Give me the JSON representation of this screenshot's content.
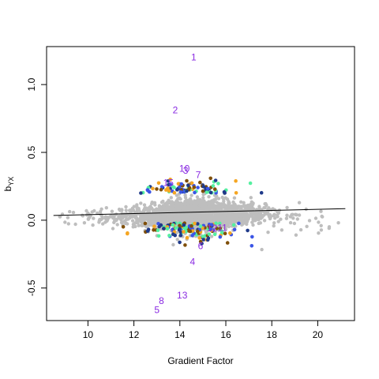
{
  "chart_data": {
    "type": "scatter",
    "xlabel": "Gradient Factor",
    "ylabel_main": "b",
    "ylabel_sub": "YX",
    "xlim": [
      8.2,
      21.6
    ],
    "ylim": [
      -0.74,
      1.28
    ],
    "xticks": [
      10,
      12,
      14,
      16,
      18,
      20
    ],
    "yticks": [
      -0.5,
      0.0,
      0.5,
      1.0
    ],
    "xtick_labels": [
      "10",
      "12",
      "14",
      "16",
      "18",
      "20"
    ],
    "ytick_labels": [
      "-0.5",
      "0.0",
      "0.5",
      "1.0"
    ],
    "grid": false,
    "background_color": "#bebebe",
    "highlight_colors": [
      "#f5a623",
      "#7f4f0a",
      "#3b55e6",
      "#55f0a0",
      "#1f3a8a"
    ],
    "label_color": "#8a2be2",
    "fit_line": {
      "x": [
        8.5,
        21.2
      ],
      "y": [
        0.035,
        0.085
      ],
      "color": "#000000"
    },
    "labeled_points": [
      {
        "label": "1",
        "x": 14.6,
        "y": 1.2
      },
      {
        "label": "2",
        "x": 13.8,
        "y": 0.81
      },
      {
        "label": "10",
        "x": 14.2,
        "y": 0.38
      },
      {
        "label": "3",
        "x": 14.25,
        "y": 0.365
      },
      {
        "label": "7",
        "x": 14.8,
        "y": 0.335
      },
      {
        "label": "15",
        "x": 13.5,
        "y": 0.275
      },
      {
        "label": "12",
        "x": 15.4,
        "y": -0.06
      },
      {
        "label": "11",
        "x": 15.85,
        "y": -0.055
      },
      {
        "label": "6",
        "x": 14.9,
        "y": -0.19
      },
      {
        "label": "4",
        "x": 14.55,
        "y": -0.305
      },
      {
        "label": "13",
        "x": 14.1,
        "y": -0.555
      },
      {
        "label": "8",
        "x": 13.2,
        "y": -0.595
      },
      {
        "label": "5",
        "x": 13.0,
        "y": -0.66
      }
    ]
  }
}
